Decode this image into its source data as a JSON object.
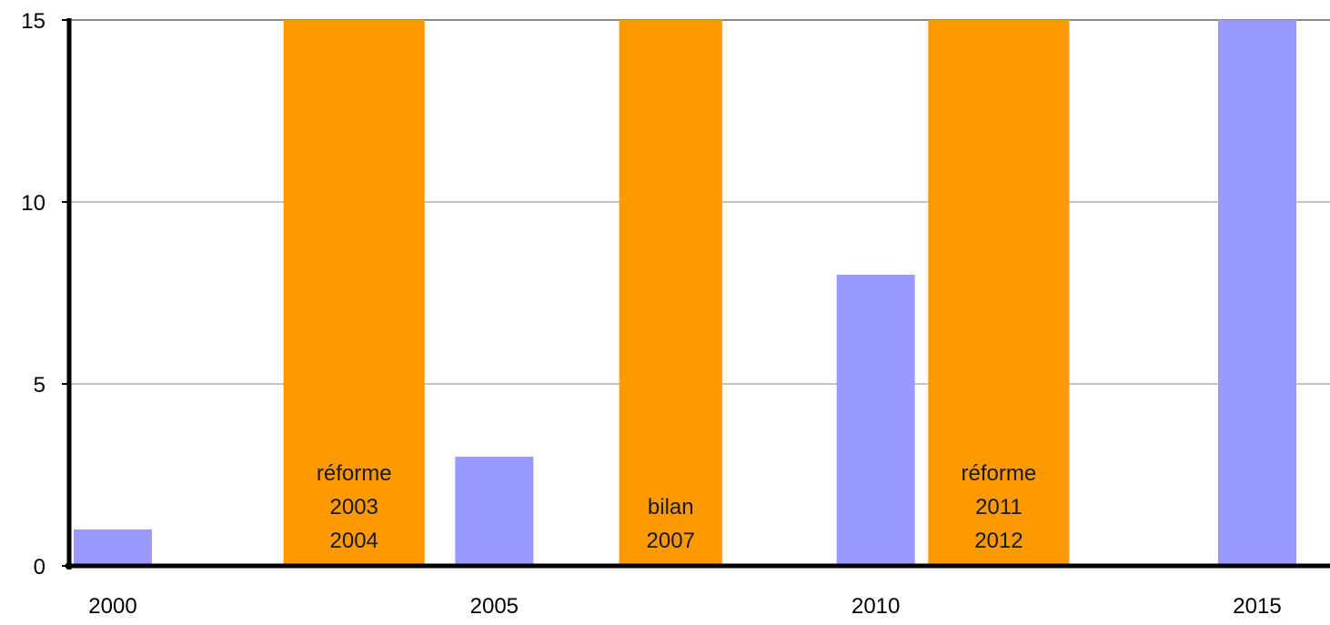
{
  "chart_data": {
    "type": "bar",
    "title": "",
    "xlabel": "",
    "ylabel": "",
    "xlim": [
      2000,
      2015
    ],
    "ylim": [
      0,
      15
    ],
    "grid": true,
    "y_ticks": [
      0,
      5,
      10,
      15
    ],
    "x_ticks": [
      2000,
      2005,
      2010,
      2015
    ],
    "series": [
      {
        "color": "#9999ff",
        "points": [
          {
            "year": 2000,
            "value": 1
          },
          {
            "year": 2005,
            "value": 3
          },
          {
            "year": 2010,
            "value": 8
          },
          {
            "year": 2015,
            "value": 15
          }
        ]
      }
    ],
    "bands": [
      {
        "from": 2002.75,
        "to": 2004.6,
        "color": "#ff9900",
        "label": [
          "réforme",
          "2003",
          "2004"
        ]
      },
      {
        "from": 2007.15,
        "to": 2008.5,
        "color": "#ff9900",
        "label": [
          "bilan",
          "2007"
        ]
      },
      {
        "from": 2011.2,
        "to": 2013.05,
        "color": "#ff9900",
        "label": [
          "réforme",
          "2011",
          "2012"
        ]
      }
    ]
  }
}
